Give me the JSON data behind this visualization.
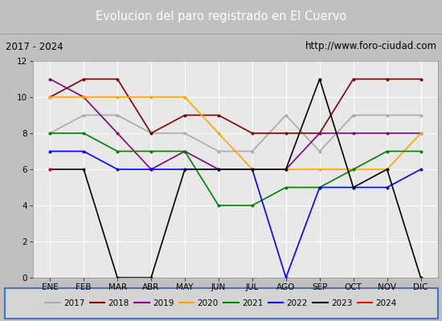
{
  "title": "Evolucion del paro registrado en El Cuervo",
  "subtitle_left": "2017 - 2024",
  "subtitle_right": "http://www.foro-ciudad.com",
  "months": [
    "ENE",
    "FEB",
    "MAR",
    "ABR",
    "MAY",
    "JUN",
    "JUL",
    "AGO",
    "SEP",
    "OCT",
    "NOV",
    "DIC"
  ],
  "month_indices": [
    1,
    2,
    3,
    4,
    5,
    6,
    7,
    8,
    9,
    10,
    11,
    12
  ],
  "series": {
    "2017": {
      "color": "#aaaaaa",
      "data": [
        8,
        9,
        9,
        8,
        8,
        7,
        7,
        9,
        7,
        9,
        9,
        9
      ]
    },
    "2018": {
      "color": "#800000",
      "data": [
        10,
        11,
        11,
        8,
        9,
        9,
        8,
        8,
        8,
        11,
        11,
        11
      ]
    },
    "2019": {
      "color": "#800080",
      "data": [
        11,
        10,
        8,
        6,
        7,
        6,
        6,
        6,
        8,
        8,
        8,
        8
      ]
    },
    "2020": {
      "color": "#ffa500",
      "data": [
        10,
        10,
        10,
        10,
        10,
        8,
        6,
        6,
        6,
        6,
        6,
        8
      ]
    },
    "2021": {
      "color": "#008000",
      "data": [
        8,
        8,
        7,
        7,
        7,
        4,
        4,
        5,
        5,
        6,
        7,
        7
      ]
    },
    "2022": {
      "color": "#0000ff",
      "data": [
        7,
        7,
        6,
        6,
        6,
        6,
        6,
        0,
        5,
        5,
        5,
        6
      ]
    },
    "2023": {
      "color": "#000000",
      "data": [
        6,
        6,
        0,
        0,
        6,
        6,
        6,
        6,
        11,
        5,
        6,
        0
      ]
    },
    "2024": {
      "color": "#ff0000",
      "data": [
        6,
        null,
        null,
        null,
        null,
        null,
        null,
        null,
        null,
        null,
        null,
        null
      ]
    }
  },
  "ylim": [
    0,
    12
  ],
  "yticks": [
    0,
    2,
    4,
    6,
    8,
    10,
    12
  ],
  "title_bg_color": "#4472c4",
  "title_text_color": "#ffffff",
  "subtitle_bg_color": "#d4d4d4",
  "plot_bg_color": "#e8e8e8",
  "legend_bg_color": "#d4d4d4",
  "legend_border_color": "#4472c4",
  "grid_color": "#ffffff"
}
